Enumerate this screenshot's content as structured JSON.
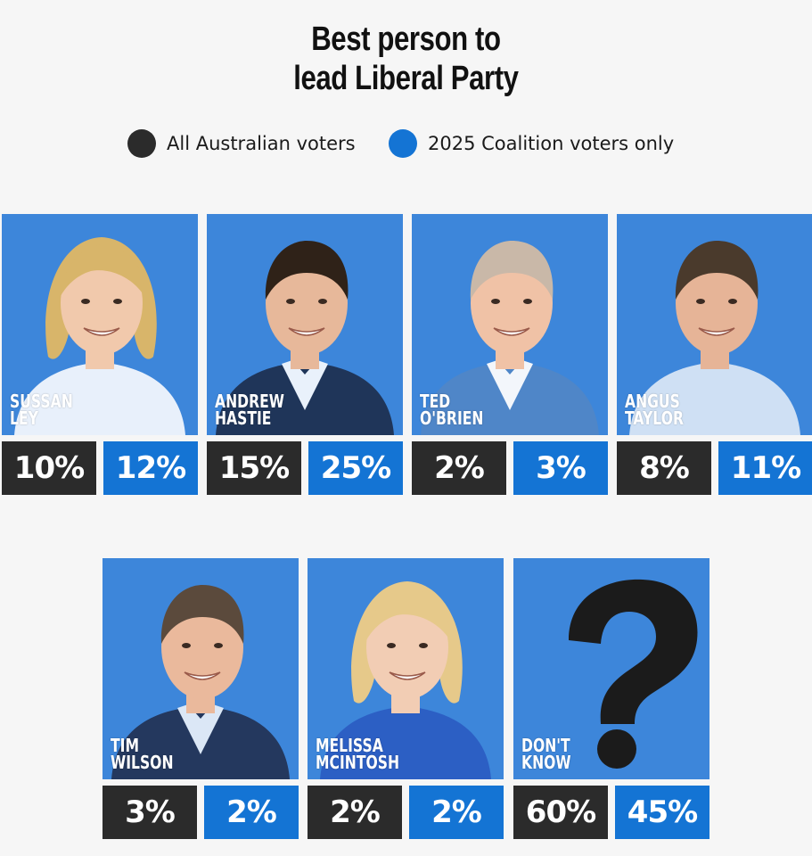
{
  "chart_data": {
    "type": "table",
    "title_lines": [
      "Best person to",
      "lead Liberal Party"
    ],
    "legend": [
      {
        "label": "All Australian voters",
        "color": "#2b2b2b"
      },
      {
        "label": "2025 Coalition voters only",
        "color": "#1474d4"
      }
    ],
    "series": [
      {
        "name": "All Australian voters",
        "values": [
          10,
          15,
          2,
          8,
          3,
          2,
          60
        ]
      },
      {
        "name": "2025 Coalition voters only",
        "values": [
          12,
          25,
          3,
          11,
          2,
          2,
          45
        ]
      }
    ],
    "candidates": [
      {
        "name_lines": [
          "SUSSAN",
          "LEY"
        ],
        "all": "10%",
        "coalition": "12%",
        "hair": "#d8b56a",
        "skin": "#f1c9ac",
        "shirt": "#e8f0fb",
        "jacket": ""
      },
      {
        "name_lines": [
          "ANDREW",
          "HASTIE"
        ],
        "all": "15%",
        "coalition": "25%",
        "hair": "#2f2218",
        "skin": "#e7b89a",
        "shirt": "#e9f1fb",
        "jacket": "#1f3559"
      },
      {
        "name_lines": [
          "TED",
          "O'BRIEN"
        ],
        "all": "2%",
        "coalition": "3%",
        "hair": "#c9b8a8",
        "skin": "#f0c2a6",
        "shirt": "#f3f6fb",
        "jacket": "#4f86c8"
      },
      {
        "name_lines": [
          "ANGUS",
          "TAYLOR"
        ],
        "all": "8%",
        "coalition": "11%",
        "hair": "#4a3a2c",
        "skin": "#e6b497",
        "shirt": "#cfe0f4",
        "jacket": ""
      },
      {
        "name_lines": [
          "TIM",
          "WILSON"
        ],
        "all": "3%",
        "coalition": "2%",
        "hair": "#5b4a3c",
        "skin": "#eab99c",
        "shirt": "#dbe7f6",
        "jacket": "#24385e"
      },
      {
        "name_lines": [
          "MELISSA",
          "MCINTOSH"
        ],
        "all": "2%",
        "coalition": "2%",
        "hair": "#e6c98a",
        "skin": "#f2cdb4",
        "shirt": "#2c5fc4",
        "jacket": ""
      },
      {
        "name_lines": [
          "DON'T",
          "KNOW"
        ],
        "all": "60%",
        "coalition": "45%",
        "question": true
      }
    ]
  }
}
